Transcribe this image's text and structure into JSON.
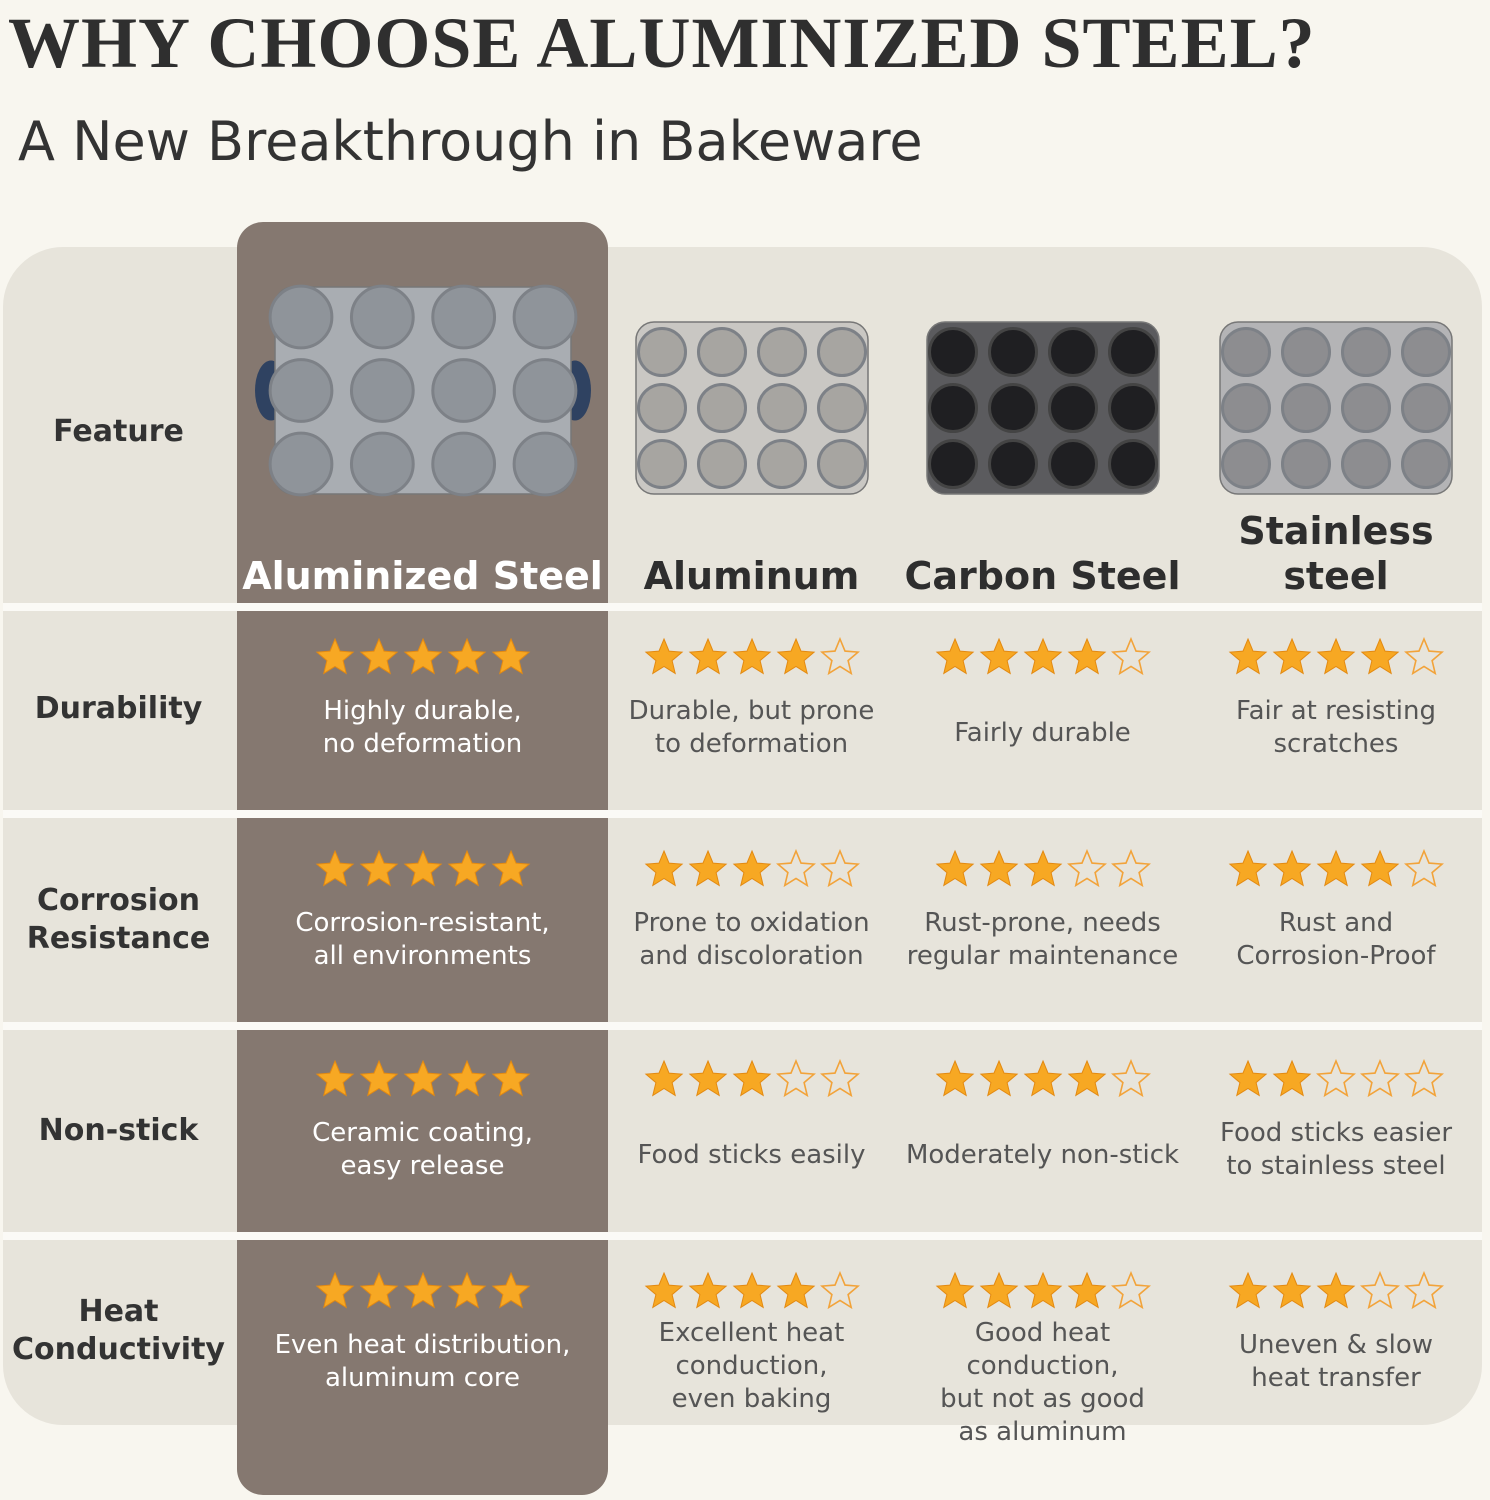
{
  "header": {
    "title": "WHY CHOOSE ALUMINIZED STEEL?",
    "subtitle": "A New Breakthrough in Bakeware"
  },
  "table": {
    "feature_label": "Feature",
    "rating_scale": 5,
    "columns": [
      [
        "Aluminized Steel"
      ],
      [
        "Aluminum"
      ],
      [
        "Carbon Steel"
      ],
      [
        "Stainless",
        "steel"
      ]
    ],
    "rows": [
      {
        "feature": [
          "Durability"
        ],
        "ratings": [
          5,
          4,
          4,
          4
        ],
        "texts": [
          [
            "Highly durable,",
            "no deformation"
          ],
          [
            "Durable, but prone",
            "to deformation"
          ],
          [
            "Fairly durable"
          ],
          [
            "Fair at resisting",
            "scratches"
          ]
        ]
      },
      {
        "feature": [
          "Corrosion",
          "Resistance"
        ],
        "ratings": [
          5,
          3,
          3,
          4
        ],
        "texts": [
          [
            "Corrosion-resistant,",
            "all environments"
          ],
          [
            "Prone to oxidation",
            "and discoloration"
          ],
          [
            "Rust-prone, needs",
            "regular maintenance"
          ],
          [
            "Rust and",
            "Corrosion-Proof"
          ]
        ]
      },
      {
        "feature": [
          "Non-stick"
        ],
        "ratings": [
          5,
          3,
          4,
          2
        ],
        "texts": [
          [
            "Ceramic coating,",
            "easy release"
          ],
          [
            "Food sticks easily"
          ],
          [
            "Moderately non-stick"
          ],
          [
            "Food sticks easier",
            "to stainless steel"
          ]
        ]
      },
      {
        "feature": [
          "Heat",
          "Conductivity"
        ],
        "ratings": [
          5,
          4,
          4,
          3
        ],
        "texts": [
          [
            "Even heat distribution,",
            "aluminum core"
          ],
          [
            "Excellent heat",
            "conduction,",
            "even baking"
          ],
          [
            "Good heat conduction,",
            "but not as good",
            "as aluminum"
          ],
          [
            "Uneven & slow",
            "heat transfer"
          ]
        ]
      }
    ]
  }
}
